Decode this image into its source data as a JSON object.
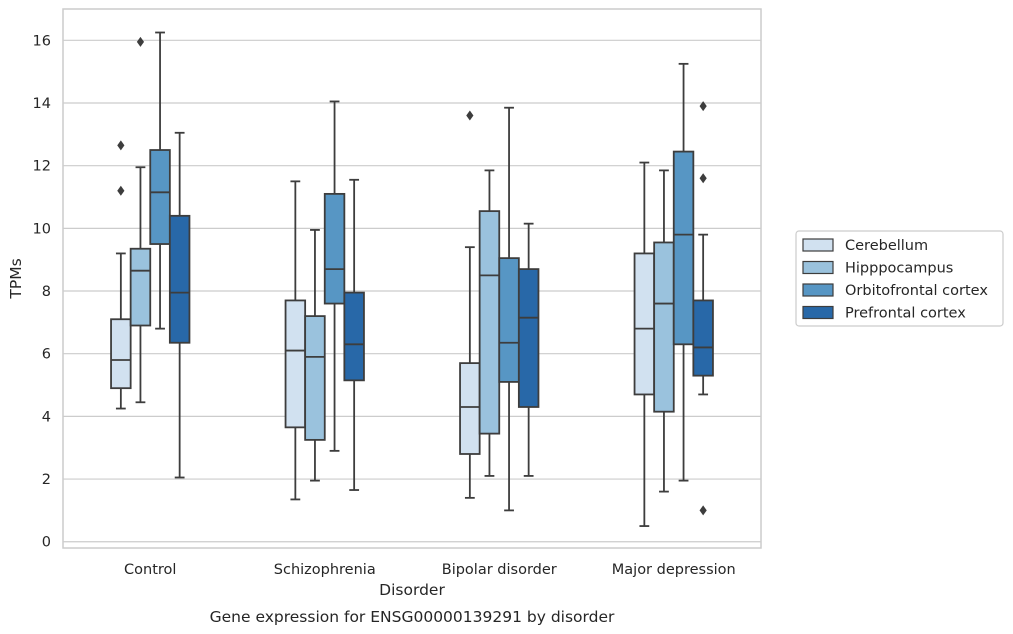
{
  "chart_data": {
    "type": "boxplot",
    "title": "",
    "caption": "Gene expression for ENSG00000139291 by disorder",
    "xlabel": "Disorder",
    "ylabel": "TPMs",
    "ylim": [
      -0.2,
      17
    ],
    "yticks": [
      0,
      2,
      4,
      6,
      8,
      10,
      12,
      14,
      16
    ],
    "grid": "horizontal",
    "legend_position": "center-right-outside",
    "categories": [
      "Control",
      "Schizophrenia",
      "Bipolar disorder",
      "Major depression"
    ],
    "series": [
      {
        "name": "Cerebellum",
        "color": "#d1e1f0",
        "boxes": [
          {
            "whislo": 4.25,
            "q1": 4.9,
            "med": 5.8,
            "q3": 7.1,
            "whishi": 9.2,
            "fliers": [
              11.2,
              12.65
            ]
          },
          {
            "whislo": 1.35,
            "q1": 3.65,
            "med": 6.1,
            "q3": 7.7,
            "whishi": 11.5,
            "fliers": []
          },
          {
            "whislo": 1.4,
            "q1": 2.8,
            "med": 4.3,
            "q3": 5.7,
            "whishi": 9.4,
            "fliers": [
              13.6
            ]
          },
          {
            "whislo": 0.5,
            "q1": 4.7,
            "med": 6.8,
            "q3": 9.2,
            "whishi": 12.1,
            "fliers": []
          }
        ]
      },
      {
        "name": "Hipppocampus",
        "color": "#9ac2dd",
        "boxes": [
          {
            "whislo": 4.45,
            "q1": 6.9,
            "med": 8.65,
            "q3": 9.35,
            "whishi": 11.95,
            "fliers": [
              15.95
            ]
          },
          {
            "whislo": 1.95,
            "q1": 3.25,
            "med": 5.9,
            "q3": 7.2,
            "whishi": 9.95,
            "fliers": []
          },
          {
            "whislo": 2.1,
            "q1": 3.45,
            "med": 8.5,
            "q3": 10.55,
            "whishi": 11.85,
            "fliers": []
          },
          {
            "whislo": 1.6,
            "q1": 4.15,
            "med": 7.6,
            "q3": 9.55,
            "whishi": 11.85,
            "fliers": []
          }
        ]
      },
      {
        "name": "Orbitofrontal cortex",
        "color": "#5796c4",
        "boxes": [
          {
            "whislo": 6.8,
            "q1": 9.5,
            "med": 11.15,
            "q3": 12.5,
            "whishi": 16.25,
            "fliers": []
          },
          {
            "whislo": 2.9,
            "q1": 7.6,
            "med": 8.7,
            "q3": 11.1,
            "whishi": 14.05,
            "fliers": []
          },
          {
            "whislo": 1.0,
            "q1": 5.1,
            "med": 6.35,
            "q3": 9.05,
            "whishi": 13.85,
            "fliers": []
          },
          {
            "whislo": 1.95,
            "q1": 6.3,
            "med": 9.8,
            "q3": 12.45,
            "whishi": 15.25,
            "fliers": []
          }
        ]
      },
      {
        "name": "Prefrontal cortex",
        "color": "#2868a8",
        "boxes": [
          {
            "whislo": 2.05,
            "q1": 6.35,
            "med": 7.95,
            "q3": 10.4,
            "whishi": 13.05,
            "fliers": []
          },
          {
            "whislo": 1.65,
            "q1": 5.15,
            "med": 6.3,
            "q3": 7.95,
            "whishi": 11.55,
            "fliers": []
          },
          {
            "whislo": 2.1,
            "q1": 4.3,
            "med": 7.15,
            "q3": 8.7,
            "whishi": 10.15,
            "fliers": []
          },
          {
            "whislo": 4.7,
            "q1": 5.3,
            "med": 6.2,
            "q3": 7.7,
            "whishi": 9.8,
            "fliers": [
              13.9,
              11.6,
              1.0
            ]
          }
        ]
      }
    ]
  }
}
